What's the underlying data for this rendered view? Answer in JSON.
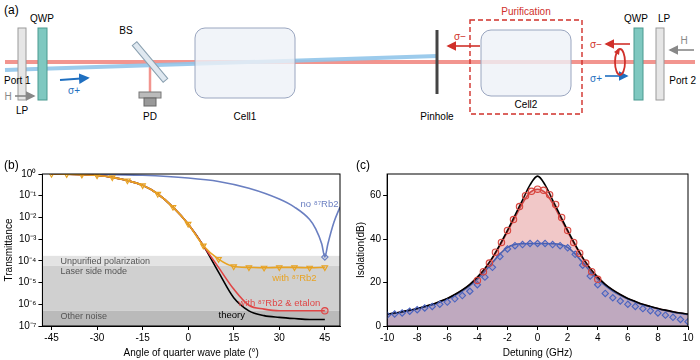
{
  "diagram": {
    "panel_label": "(a)",
    "port1": "Port 1",
    "pol_in_left": "H",
    "lp_left": "LP",
    "qwp_left": "QWP",
    "pol_after_left": "σ+",
    "bs": "BS",
    "pd": "PD",
    "cell1": "Cell1",
    "pinhole": "Pinhole",
    "pol_pinhole": "σ−",
    "purification": "Purification",
    "cell2": "Cell2",
    "pol_back_1": "σ−",
    "pol_back_2": "σ+",
    "qwp_right": "QWP",
    "lp_right": "LP",
    "pol_in_right": "H",
    "port2": "Port 2"
  },
  "chart_data": [
    {
      "type": "line",
      "panel_label": "(b)",
      "x_label": "Angle of quarter wave plate (°)",
      "y_label": "Transmittance",
      "log": "y",
      "grid": false,
      "xlim": [
        -48,
        50
      ],
      "xticks": [
        -45,
        -30,
        -15,
        0,
        15,
        30,
        45
      ],
      "ylim": [
        1e-07,
        1
      ],
      "yticks": [
        {
          "value": 1e-07,
          "label": "10⁻⁷"
        },
        {
          "value": 1e-06,
          "label": "10⁻⁶"
        },
        {
          "value": 1e-05,
          "label": "10⁻⁵"
        },
        {
          "value": 0.0001,
          "label": "10⁻⁴"
        },
        {
          "value": 0.001,
          "label": "10⁻³"
        },
        {
          "value": 0.01,
          "label": "10⁻²"
        },
        {
          "value": 0.1,
          "label": "10⁻¹"
        },
        {
          "value": 1,
          "label": "10⁰"
        }
      ],
      "bands": [
        {
          "label": "Unpurified polarization",
          "from": 6e-05,
          "to": 0.00017
        },
        {
          "label": "Laser side mode",
          "from": 5e-07,
          "to": 6e-05
        },
        {
          "label": "Other noise",
          "from": 1e-07,
          "to": 5e-07
        }
      ],
      "series": [
        {
          "name": "with ⁸⁷Rb2",
          "type": "line",
          "color": "#e8a323",
          "marker": "triangle-down",
          "line_style": "solid",
          "x": [
            -45,
            -40,
            -35,
            -30,
            -25,
            -20,
            -15,
            -10,
            -5,
            0,
            5,
            10,
            15,
            20,
            25,
            30,
            35,
            40,
            45
          ],
          "values": [
            1,
            0.98,
            0.93,
            0.85,
            0.7,
            0.5,
            0.3,
            0.12,
            0.03,
            0.005,
            0.0005,
            0.00012,
            5.5e-05,
            5e-05,
            4.8e-05,
            5e-05,
            5e-05,
            4.8e-05,
            5e-05
          ]
        },
        {
          "type": "scatter",
          "color": "#e04545",
          "marker": "circle",
          "x": [
            45
          ],
          "values": [
            5e-07
          ]
        },
        {
          "name": "with ⁸⁷Rb2 & etalon",
          "type": "line",
          "color": "#e04545",
          "line_style": "solid",
          "x": [
            -45,
            -40,
            -35,
            -30,
            -25,
            -20,
            -15,
            -10,
            -5,
            0,
            5,
            10,
            15,
            20,
            25,
            30,
            35,
            40,
            45
          ],
          "values": [
            1,
            0.98,
            0.93,
            0.85,
            0.7,
            0.5,
            0.3,
            0.12,
            0.03,
            0.005,
            0.0005,
            5e-05,
            5e-06,
            9e-07,
            6e-07,
            5e-07,
            5e-07,
            5e-07,
            5e-07
          ]
        },
        {
          "name": "theory",
          "type": "line",
          "color": "#000000",
          "line_style": "solid",
          "x": [
            -45,
            -40,
            -35,
            -30,
            -25,
            -20,
            -15,
            -10,
            -5,
            0,
            5,
            10,
            15,
            20,
            25,
            30,
            35,
            40,
            45
          ],
          "values": [
            1,
            0.98,
            0.93,
            0.85,
            0.7,
            0.5,
            0.3,
            0.12,
            0.03,
            0.005,
            0.0005,
            3e-05,
            2e-06,
            5e-07,
            3e-07,
            2.5e-07,
            2.2e-07,
            2e-07,
            2e-07
          ]
        },
        {
          "type": "scatter",
          "color": "#6a7fc1",
          "marker": "diamond",
          "x": [
            45
          ],
          "values": [
            0.00015
          ]
        },
        {
          "name": "no ⁸⁷Rb2",
          "type": "line",
          "color": "#6a7fc1",
          "line_style": "solid",
          "x": [
            -45,
            -30,
            -15,
            0,
            10,
            20,
            30,
            35,
            40,
            42,
            44,
            45,
            46,
            48,
            50
          ],
          "values": [
            1,
            0.97,
            0.87,
            0.65,
            0.45,
            0.22,
            0.07,
            0.03,
            0.008,
            0.003,
            0.0006,
            0.00015,
            0.0006,
            0.006,
            0.03
          ]
        }
      ]
    },
    {
      "type": "line",
      "panel_label": "(c)",
      "x_label": "Detuning (GHz)",
      "y_label": "Isolation(dB)",
      "grid": false,
      "xlim": [
        -10,
        10
      ],
      "xticks": [
        -10,
        -8,
        -6,
        -4,
        -2,
        0,
        2,
        4,
        6,
        8,
        10
      ],
      "ylim": [
        0,
        70
      ],
      "yticks": [
        0,
        20,
        40,
        60
      ],
      "series": [
        {
          "type": "scatter",
          "color": "#d9463f",
          "marker": "circle",
          "x": [
            -4,
            -3.6,
            -3.2,
            -2.8,
            -2.4,
            -2,
            -1.6,
            -1.2,
            -0.8,
            -0.4,
            0,
            0.4,
            0.8,
            1.2,
            1.6,
            2,
            2.4,
            2.8,
            3.2,
            3.6,
            4
          ],
          "values": [
            21,
            25,
            29,
            34,
            38.5,
            44,
            49,
            55,
            60,
            62,
            63,
            62.5,
            60.5,
            56,
            50,
            44,
            38.5,
            33.5,
            29,
            25,
            21.5
          ]
        },
        {
          "type": "scatter",
          "color": "#4a64c0",
          "marker": "diamond",
          "x": [
            -10,
            -9.5,
            -9,
            -8.5,
            -8,
            -7.5,
            -7,
            -6.5,
            -6,
            -5.5,
            -5,
            -4.5,
            -4,
            -3.5,
            -3,
            -2.5,
            -2,
            -1.5,
            -1,
            -0.5,
            0,
            0.5,
            1,
            1.5,
            2,
            2.5,
            3,
            3.5,
            4,
            4.5,
            5,
            5.5,
            6,
            6.5,
            7,
            7.5,
            8,
            8.5,
            9,
            9.5,
            10
          ],
          "values": [
            5,
            5.5,
            6,
            6.8,
            7.5,
            8.3,
            9,
            10,
            11,
            12.5,
            14,
            16,
            19,
            22.5,
            27,
            32,
            35.5,
            37,
            37.5,
            38,
            38,
            38,
            37.5,
            37,
            36,
            33,
            28,
            23,
            19,
            15,
            13,
            11.5,
            10,
            9,
            8,
            7,
            6,
            5,
            4,
            3,
            2
          ]
        },
        {
          "type": "line",
          "color": "#000000",
          "line_style": "solid",
          "x": [
            -10,
            -9.5,
            -9,
            -8.5,
            -8,
            -7.5,
            -7,
            -6.5,
            -6,
            -5.5,
            -5,
            -4.5,
            -4,
            -3.5,
            -3,
            -2.5,
            -2,
            -1.5,
            -1,
            -0.5,
            0,
            0.5,
            1,
            1.5,
            2,
            2.5,
            3,
            3.5,
            4,
            4.5,
            5,
            5.5,
            6,
            6.5,
            7,
            7.5,
            8,
            8.5,
            9,
            9.5,
            10
          ],
          "values": [
            5.5,
            6,
            6.6,
            7.3,
            8.1,
            9,
            10,
            11.3,
            12.7,
            14.5,
            16.6,
            19.2,
            22.5,
            26.5,
            31.5,
            37.5,
            44,
            51,
            58,
            65,
            69,
            65,
            58,
            51,
            44,
            37.5,
            31.5,
            26.5,
            22.5,
            19.2,
            16.6,
            14.5,
            12.7,
            11.3,
            10,
            9,
            8.1,
            7.3,
            6.6,
            6,
            5.5
          ]
        },
        {
          "type": "area",
          "color": "#4a5fa8",
          "line_style": "solid",
          "x": [
            -10,
            -9.5,
            -9,
            -8.5,
            -8,
            -7.5,
            -7,
            -6.5,
            -6,
            -5.5,
            -5,
            -4.5,
            -4,
            -3.5,
            -3,
            -2.5,
            -2,
            -1.5,
            -1,
            -0.5,
            0,
            0.5,
            1,
            1.5,
            2,
            2.5,
            3,
            3.5,
            4,
            4.5,
            5,
            5.5,
            6,
            6.5,
            7,
            7.5,
            8,
            8.5,
            9,
            9.5,
            10
          ],
          "values": [
            5.3,
            5.8,
            6.4,
            7.1,
            7.9,
            8.8,
            9.7,
            11,
            12.4,
            14.1,
            16.1,
            18.6,
            21.6,
            25.2,
            29.2,
            33.2,
            36.2,
            37.5,
            37.9,
            38,
            38,
            38,
            37.9,
            37.5,
            36.2,
            33.2,
            29.2,
            25.2,
            21.6,
            18.6,
            16.1,
            14.1,
            12.4,
            11,
            9.7,
            8.8,
            7.9,
            7.1,
            6.4,
            5.8,
            5.3
          ]
        },
        {
          "type": "area",
          "color": "#d04848",
          "line_style": "solid",
          "x": [
            -10,
            -9.5,
            -9,
            -8.5,
            -8,
            -7.5,
            -7,
            -6.5,
            -6,
            -5.5,
            -5,
            -4.5,
            -4,
            -3.5,
            -3,
            -2.5,
            -2,
            -1.5,
            -1,
            -0.5,
            0,
            0.5,
            1,
            1.5,
            2,
            2.5,
            3,
            3.5,
            4,
            4.5,
            5,
            5.5,
            6,
            6.5,
            7,
            7.5,
            8,
            8.5,
            9,
            9.5,
            10
          ],
          "values": [
            5.4,
            5.9,
            6.5,
            7.2,
            8,
            8.9,
            9.9,
            11.2,
            12.6,
            14.4,
            16.5,
            19.1,
            22.4,
            26.3,
            31.2,
            37,
            43.5,
            50,
            56.5,
            61.5,
            63,
            61.5,
            56.5,
            50,
            43.5,
            37,
            31.2,
            26.3,
            22.4,
            19.1,
            16.5,
            14.4,
            12.6,
            11.2,
            9.9,
            8.9,
            8,
            7.2,
            6.5,
            5.9,
            5.4
          ]
        }
      ]
    }
  ]
}
